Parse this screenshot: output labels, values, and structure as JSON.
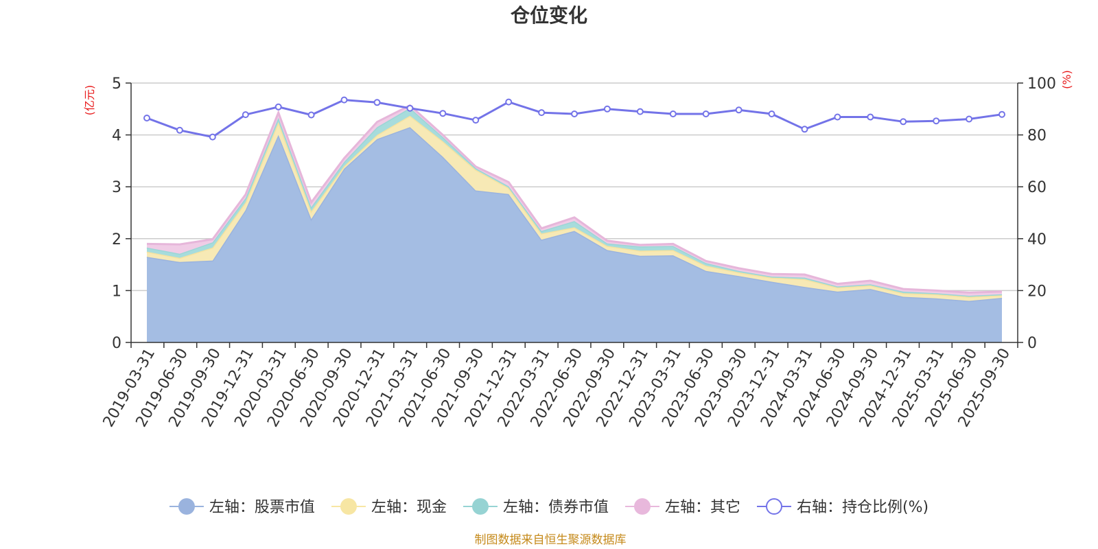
{
  "chart_data": {
    "type": "area",
    "title": "仓位变化",
    "left_unit": "(亿元)",
    "right_unit": "(%)",
    "left_ylim": [
      0,
      5
    ],
    "left_ticks": [
      "0",
      "1",
      "2",
      "3",
      "4",
      "5"
    ],
    "right_ylim": [
      0,
      100
    ],
    "right_ticks": [
      "0",
      "20",
      "40",
      "60",
      "80",
      "100"
    ],
    "categories": [
      "2019-03-31",
      "2019-06-30",
      "2019-09-30",
      "2019-12-31",
      "2020-03-31",
      "2020-06-30",
      "2020-09-30",
      "2020-12-31",
      "2021-03-31",
      "2021-06-30",
      "2021-09-30",
      "2021-12-31",
      "2022-03-31",
      "2022-06-30",
      "2022-09-30",
      "2022-12-31",
      "2023-03-31",
      "2023-06-30",
      "2023-09-30",
      "2023-12-31",
      "2024-03-31",
      "2024-06-30",
      "2024-09-30",
      "2024-12-31",
      "2025-03-31",
      "2025-06-30",
      "2025-09-30"
    ],
    "series": [
      {
        "name": "左轴：股票市值",
        "axis": "left",
        "kind": "area",
        "color": "#a4bde3",
        "line": "#9ab3de",
        "values": [
          1.65,
          1.55,
          1.58,
          2.55,
          4.0,
          2.38,
          3.35,
          3.92,
          4.15,
          3.58,
          2.93,
          2.86,
          1.98,
          2.15,
          1.78,
          1.67,
          1.68,
          1.38,
          1.28,
          1.17,
          1.07,
          0.98,
          1.03,
          0.88,
          0.85,
          0.8,
          0.86
        ]
      },
      {
        "name": "左轴：现金",
        "axis": "left",
        "kind": "area",
        "color": "#f7e9b5",
        "line": "#f5e2a0",
        "values": [
          0.1,
          0.08,
          0.25,
          0.15,
          0.25,
          0.15,
          0.05,
          0.08,
          0.22,
          0.3,
          0.4,
          0.12,
          0.12,
          0.07,
          0.08,
          0.1,
          0.1,
          0.1,
          0.07,
          0.08,
          0.15,
          0.08,
          0.07,
          0.07,
          0.08,
          0.08,
          0.05
        ]
      },
      {
        "name": "左轴：债券市值",
        "axis": "left",
        "kind": "area",
        "color": "#a7dcdc",
        "line": "#9bd6d6",
        "values": [
          0.08,
          0.08,
          0.1,
          0.08,
          0.08,
          0.08,
          0.08,
          0.15,
          0.15,
          0.08,
          0.03,
          0.03,
          0.05,
          0.12,
          0.05,
          0.08,
          0.08,
          0.05,
          0.03,
          0.02,
          0.03,
          0.02,
          0.02,
          0.03,
          0.02,
          0.02,
          0.02
        ]
      },
      {
        "name": "左轴：其它",
        "axis": "left",
        "kind": "area",
        "color": "#f0cce6",
        "line": "#e6b6da",
        "values": [
          0.07,
          0.18,
          0.06,
          0.07,
          0.1,
          0.09,
          0.07,
          0.1,
          0.05,
          0.04,
          0.03,
          0.08,
          0.05,
          0.07,
          0.05,
          0.03,
          0.04,
          0.04,
          0.05,
          0.05,
          0.06,
          0.05,
          0.07,
          0.05,
          0.05,
          0.06,
          0.05
        ]
      },
      {
        "name": "右轴：持仓比例(%)",
        "axis": "right",
        "kind": "line",
        "color": "#7373e8",
        "values": [
          86.5,
          81.8,
          79.2,
          87.8,
          90.8,
          87.7,
          93.5,
          92.5,
          90.3,
          88.3,
          85.7,
          92.7,
          88.6,
          88.1,
          90.0,
          89.0,
          88.1,
          88.1,
          89.6,
          88.1,
          82.2,
          86.9,
          86.9,
          85.1,
          85.4,
          86.1,
          87.9
        ]
      }
    ]
  },
  "legend": [
    {
      "label": "左轴：股票市值",
      "marker": "filled-circle",
      "color": "#9ab3de"
    },
    {
      "label": "左轴：现金",
      "marker": "filled-circle",
      "color": "#f7e6a3"
    },
    {
      "label": "左轴：债券市值",
      "marker": "filled-circle",
      "color": "#96d3d3"
    },
    {
      "label": "左轴：其它",
      "marker": "filled-circle",
      "color": "#e8b8dc"
    },
    {
      "label": "右轴：持仓比例(%)",
      "marker": "hollow-circle",
      "color": "#7373e8"
    }
  ],
  "footer": "制图数据来自恒生聚源数据库",
  "colors": {
    "grid": "#cccccc",
    "axis": "#333333",
    "unit": "#e8191a",
    "footer": "#c58a1b"
  }
}
